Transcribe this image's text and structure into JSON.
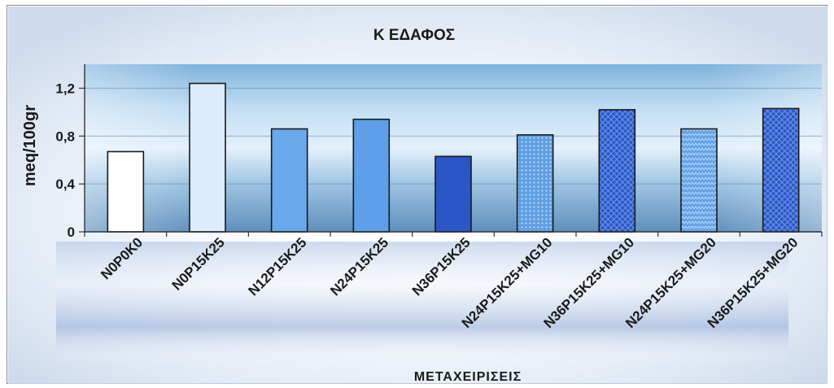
{
  "chart_data": {
    "type": "bar",
    "title": "Κ ΕΔΑΦΟΣ",
    "xlabel": "ΜΕΤΑΧΕΙΡΙΣΕΙΣ",
    "ylabel": "meq/100gr",
    "ylim": [
      0,
      1.4
    ],
    "yticks": [
      "0",
      "0,4",
      "0,8",
      "1,2"
    ],
    "ytick_values": [
      0,
      0.4,
      0.8,
      1.2
    ],
    "grid": true,
    "legend": "none",
    "categories": [
      "N0P0K0",
      "N0P15K25",
      "N12P15K25",
      "N24P15K25",
      "N36P15K25",
      "N24P15K25+MG10",
      "N36P15K25+MG10",
      "N24P15K25+MG20",
      "N36P15K25+MG20"
    ],
    "values": [
      0.67,
      1.24,
      0.86,
      0.94,
      0.63,
      0.81,
      1.02,
      0.86,
      1.03
    ],
    "bar_colors": [
      "#ffffff",
      "#dcecfc",
      "#6aa8ec",
      "#5d9fe8",
      "#2a56c6",
      "#5f9fe3",
      "#2b58c8",
      "#63a2e6",
      "#2f5fcc"
    ],
    "bar_patterns": [
      "none",
      "none",
      "none",
      "none",
      "none",
      "dots",
      "crosshatch",
      "zigzag",
      "crosshatch"
    ]
  }
}
